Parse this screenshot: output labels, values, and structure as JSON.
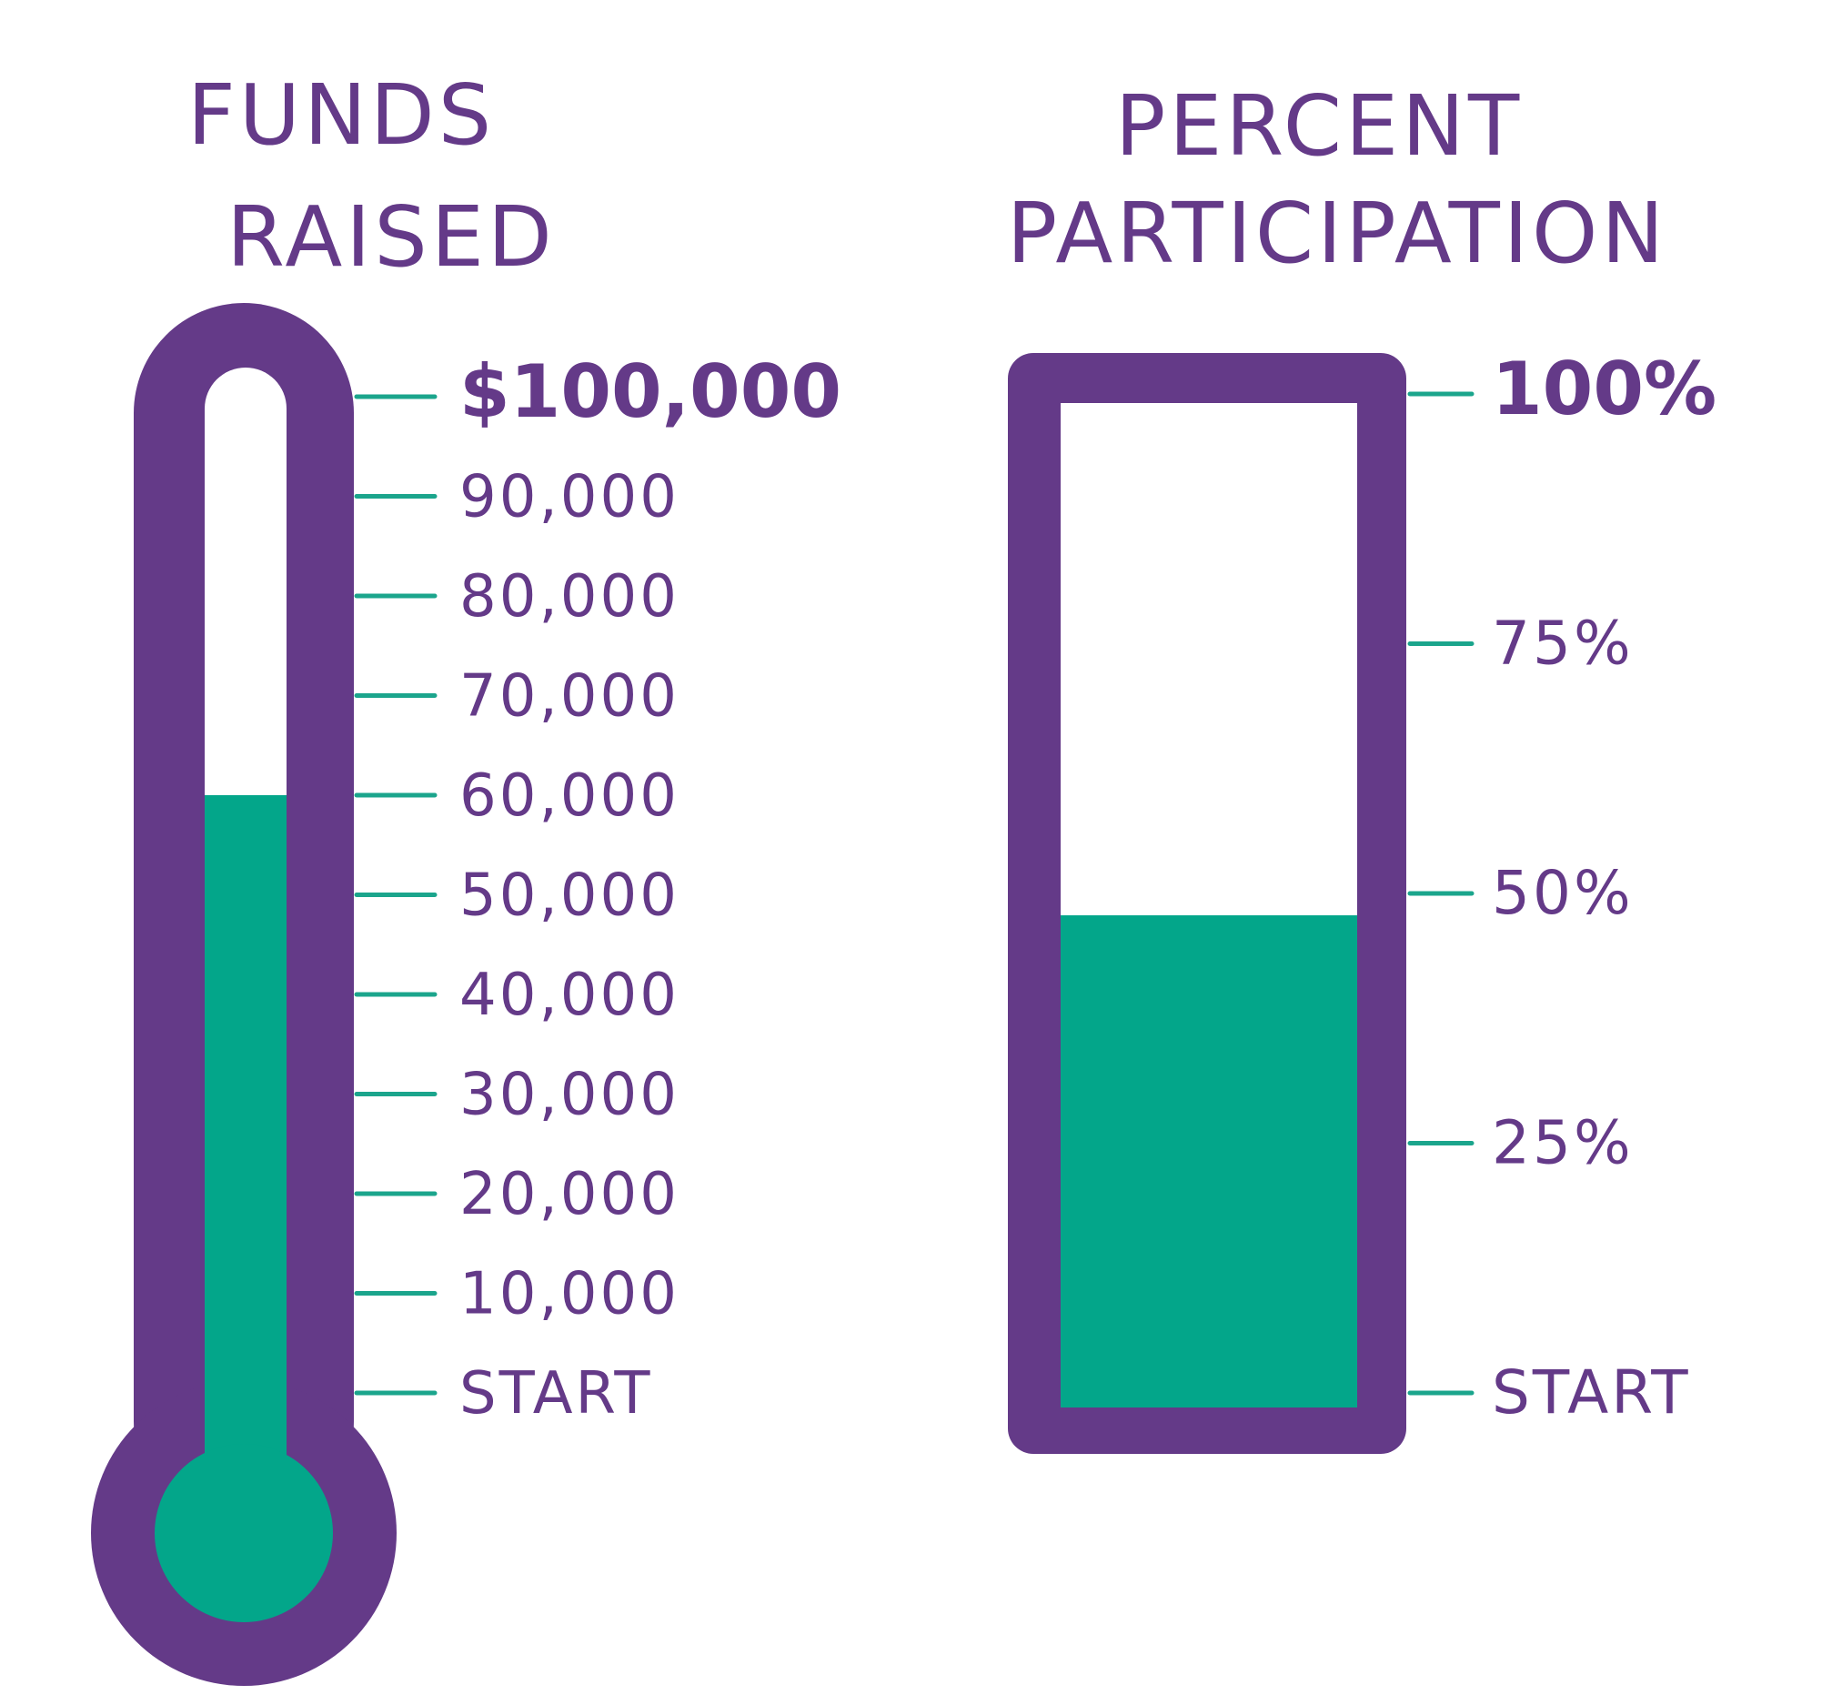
{
  "colors": {
    "outline": "#643A88",
    "fill": "#03A68A",
    "tick": "#1BA58C",
    "text": "#643A88",
    "background": "#FFFFFF"
  },
  "chart_data": [
    {
      "type": "thermometer",
      "title_lines": [
        "FUNDS",
        "RAISED"
      ],
      "min": 0,
      "max": 100000,
      "value": 60000,
      "ticks": [
        {
          "value": 100000,
          "label": "$100,000",
          "bold": true
        },
        {
          "value": 90000,
          "label": "90,000"
        },
        {
          "value": 80000,
          "label": "80,000"
        },
        {
          "value": 70000,
          "label": "70,000"
        },
        {
          "value": 60000,
          "label": "60,000"
        },
        {
          "value": 50000,
          "label": "50,000"
        },
        {
          "value": 40000,
          "label": "40,000"
        },
        {
          "value": 30000,
          "label": "30,000"
        },
        {
          "value": 20000,
          "label": "20,000"
        },
        {
          "value": 10000,
          "label": "10,000"
        },
        {
          "value": 0,
          "label": "START"
        }
      ]
    },
    {
      "type": "progress-bar",
      "title_lines": [
        "PERCENT",
        "PARTICIPATION"
      ],
      "min": 0,
      "max": 100,
      "value": 49,
      "unit": "%",
      "ticks": [
        {
          "value": 100,
          "label": "100%",
          "bold": true
        },
        {
          "value": 75,
          "label": "75%"
        },
        {
          "value": 50,
          "label": "50%"
        },
        {
          "value": 25,
          "label": "25%"
        },
        {
          "value": 0,
          "label": "START"
        }
      ]
    }
  ]
}
